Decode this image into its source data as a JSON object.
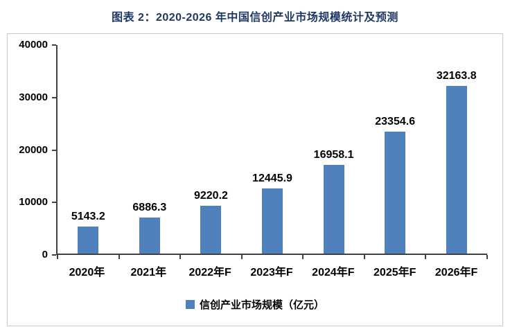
{
  "title": "图表 2：2020-2026 年中国信创产业市场规模统计及预测",
  "chart_data": {
    "type": "bar",
    "title": "图表 2：2020-2026 年中国信创产业市场规模统计及预测",
    "categories": [
      "2020年",
      "2021年",
      "2022年F",
      "2023年F",
      "2024年F",
      "2025年F",
      "2026年F"
    ],
    "values": [
      5143.2,
      6886.3,
      9220.2,
      12445.9,
      16958.1,
      23354.6,
      32163.8
    ],
    "value_labels": [
      "5143.2",
      "6886.3",
      "9220.2",
      "12445.9",
      "16958.1",
      "23354.6",
      "32163.8"
    ],
    "ylim": [
      0,
      40000
    ],
    "yticks": [
      0,
      10000,
      20000,
      30000,
      40000
    ],
    "ytick_labels": [
      "0",
      "10000",
      "20000",
      "30000",
      "40000"
    ],
    "ylabel": "",
    "xlabel": "",
    "grid": false,
    "legend": "信创产业市场规模（亿元）",
    "legend_position": "bottom",
    "bar_color": "#4f81bd",
    "axis_color": "#404040",
    "label_color": "#000000",
    "title_color": "#1f3864",
    "border_color": "#c9c9c9"
  }
}
